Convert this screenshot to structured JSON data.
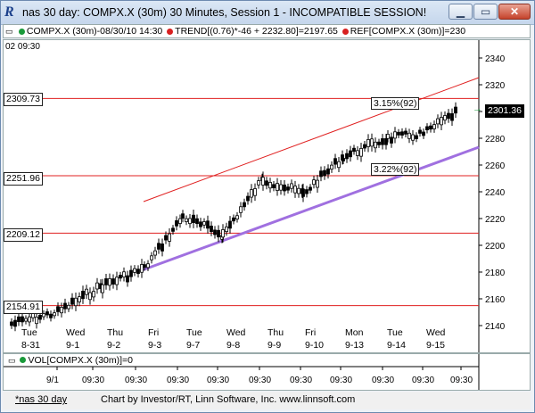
{
  "window": {
    "icon_text": "R",
    "title": "nas 30 day: COMPX.X (30m) 30 Minutes, Session 1 - INCOMPATIBLE SESSION!",
    "min_glyph": "▁",
    "max_glyph": "▭",
    "close_glyph": "✕"
  },
  "legend": {
    "symbol": "COMPX.X (30m)-08/30/10 14:30",
    "trend": "TREND[(0.76)*-46 + 2232.80]=2197.65",
    "ref": "REF[COMPX.X (30m)]=230",
    "colors": {
      "symbol_dot": "#1a9a3a",
      "trend_dot": "#d82020",
      "ref_dot": "#d82020"
    }
  },
  "chart": {
    "top_left_label": "02  09:30",
    "price_axis": [
      "2340",
      "2320",
      "2300",
      "2280",
      "2260",
      "2240",
      "2220",
      "2200",
      "2180",
      "2160",
      "2140"
    ],
    "current_price": "2301.36",
    "ref_lines": [
      "2309.73",
      "2251.96",
      "2209.12",
      "2154.91"
    ],
    "callout_upper": "3.15%(92)",
    "callout_lower": "3.22%(92)",
    "days": [
      {
        "dow": "Tue",
        "date": "8-31"
      },
      {
        "dow": "Wed",
        "date": "9-1"
      },
      {
        "dow": "Thu",
        "date": "9-2"
      },
      {
        "dow": "Fri",
        "date": "9-3"
      },
      {
        "dow": "Tue",
        "date": "9-7"
      },
      {
        "dow": "Wed",
        "date": "9-8"
      },
      {
        "dow": "Thu",
        "date": "9-9"
      },
      {
        "dow": "Fri",
        "date": "9-10"
      },
      {
        "dow": "Mon",
        "date": "9-13"
      },
      {
        "dow": "Tue",
        "date": "9-14"
      },
      {
        "dow": "Wed",
        "date": "9-15"
      }
    ],
    "colors": {
      "ref_line": "#e02020",
      "trend_upper": "#e02020",
      "trend_lower": "#a070e0",
      "candle_up": "#ffffff",
      "candle_down": "#000000"
    }
  },
  "volume": {
    "label": "VOL[COMPX.X (30m)]=0",
    "time_axis": [
      "9/1",
      "09:30",
      "09:30",
      "09:30",
      "09:30",
      "09:30",
      "09:30",
      "09:30",
      "09:30",
      "09:30",
      "09:30"
    ]
  },
  "status": {
    "left": "*nas 30 day",
    "credit": "Chart by Investor/RT, Linn Software, Inc. www.linnsoft.com"
  }
}
